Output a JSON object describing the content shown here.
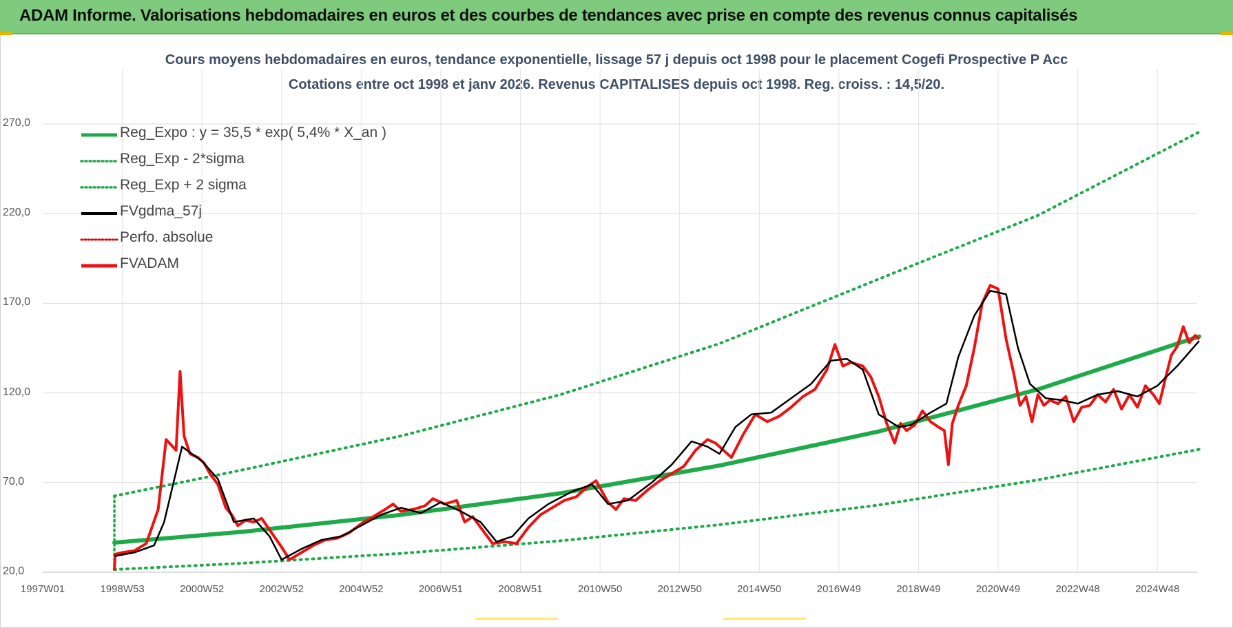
{
  "banner": {
    "title": "ADAM Informe. Valorisations hebdomadaires en euros et des courbes de tendances avec prise en compte des revenus connus capitalisés"
  },
  "chart_data": {
    "type": "line",
    "title_line1": "Cours moyens hebdomadaires en euros, tendance exponentielle, lissage 57 j depuis oct 1998 pour le placement Cogefi Prospective P Acc",
    "title_line2": "Cotations entre oct 1998 et janv 2026. Revenus CAPITALISES depuis oct 1998. Reg. croiss. : 14,5/20.",
    "ylim": [
      20,
      270
    ],
    "y_ticks": [
      "270,0",
      "220,0",
      "170,0",
      "120,0",
      "70,0",
      "20,0"
    ],
    "y_tick_values": [
      270,
      220,
      170,
      120,
      70,
      20
    ],
    "x_range": [
      1997.0,
      2026.0
    ],
    "x_ticks": [
      "1997W01",
      "1998W53",
      "2000W52",
      "2002W52",
      "2004W52",
      "2006W51",
      "2008W51",
      "2010W50",
      "2012W50",
      "2014W50",
      "2016W49",
      "2018W49",
      "2020W49",
      "2022W48",
      "2024W48"
    ],
    "x_tick_values": [
      1997.0,
      1999.0,
      2001.0,
      2003.0,
      2005.0,
      2007.0,
      2009.0,
      2011.0,
      2013.0,
      2015.0,
      2017.0,
      2019.0,
      2021.0,
      2023.0,
      2025.0
    ],
    "start_year": 1998.8,
    "end_year": 2026.05,
    "series": [
      {
        "name": "Reg_Expo : y = 35,5 * exp( 5,4% *  X_an )",
        "color": "#1faa4a",
        "style": "solid-thick",
        "x": [
          1998.8,
          2002,
          2006,
          2010,
          2014,
          2018,
          2022,
          2026.05
        ],
        "y": [
          36.5,
          42.5,
          52.0,
          64.0,
          79.5,
          98.5,
          122.0,
          151.5
        ]
      },
      {
        "name": "Reg_Exp - 2*sigma",
        "color": "#1faa4a",
        "style": "dotted",
        "x": [
          1998.8,
          2002,
          2006,
          2010,
          2014,
          2018,
          2022,
          2026.05
        ],
        "y": [
          21.5,
          25.0,
          30.5,
          37.5,
          46.5,
          57.5,
          71.5,
          88.5
        ]
      },
      {
        "name": "Reg_Exp + 2 sigma",
        "color": "#1faa4a",
        "style": "dotted",
        "x": [
          1998.8,
          2002,
          2006,
          2010,
          2014,
          2018,
          2022,
          2026.05
        ],
        "y": [
          62.5,
          77.0,
          96.0,
          119.0,
          147.5,
          183.5,
          219.0,
          265.5
        ]
      },
      {
        "name": "FVgdma_57j",
        "color": "#000000",
        "style": "solid",
        "x": [
          1998.8,
          1999.3,
          1999.8,
          2000.05,
          2000.5,
          2001.0,
          2001.4,
          2001.8,
          2002.3,
          2002.7,
          2003.0,
          2003.5,
          2004.0,
          2004.5,
          2005.0,
          2005.5,
          2006.0,
          2006.5,
          2007.0,
          2007.5,
          2008.0,
          2008.4,
          2008.8,
          2009.2,
          2009.7,
          2010.3,
          2010.8,
          2011.2,
          2011.7,
          2012.3,
          2012.8,
          2013.3,
          2013.7,
          2014.0,
          2014.4,
          2014.8,
          2015.3,
          2015.8,
          2016.3,
          2016.8,
          2017.2,
          2017.6,
          2018.0,
          2018.5,
          2018.8,
          2019.3,
          2019.7,
          2020.0,
          2020.4,
          2020.8,
          2021.2,
          2021.5,
          2021.8,
          2022.2,
          2022.6,
          2023.0,
          2023.5,
          2024.0,
          2024.5,
          2025.0,
          2025.5,
          2026.05
        ],
        "y": [
          29,
          31,
          35,
          48,
          90,
          82,
          72,
          48,
          50,
          40,
          27,
          33,
          38,
          40,
          46,
          52,
          56,
          53,
          59,
          54,
          48,
          37,
          40,
          50,
          58,
          65,
          69,
          58,
          60,
          70,
          80,
          93,
          90,
          86,
          101,
          108,
          109,
          117,
          125,
          138,
          139,
          133,
          108,
          101,
          102,
          109,
          114,
          140,
          163,
          177,
          175,
          145,
          125,
          117,
          116,
          114,
          119,
          121,
          118,
          124,
          135,
          149
        ]
      },
      {
        "name": "Perfo. absolue",
        "color": "#e00000",
        "style": "dotted",
        "x": [],
        "y": []
      },
      {
        "name": "FVADAM",
        "color": "#ee1111",
        "style": "solid-thick",
        "x": [
          1998.8,
          1998.82,
          1999.0,
          1999.3,
          1999.6,
          1999.9,
          2000.1,
          2000.35,
          2000.45,
          2000.55,
          2000.7,
          2000.9,
          2001.05,
          2001.2,
          2001.4,
          2001.6,
          2001.75,
          2001.9,
          2002.1,
          2002.3,
          2002.5,
          2002.75,
          2003.0,
          2003.2,
          2003.5,
          2003.8,
          2004.1,
          2004.4,
          2004.7,
          2005.0,
          2005.3,
          2005.6,
          2005.8,
          2006.0,
          2006.3,
          2006.6,
          2006.8,
          2007.1,
          2007.4,
          2007.6,
          2007.8,
          2008.0,
          2008.3,
          2008.6,
          2008.9,
          2009.2,
          2009.5,
          2009.8,
          2010.1,
          2010.4,
          2010.7,
          2010.9,
          2011.2,
          2011.4,
          2011.6,
          2011.9,
          2012.2,
          2012.5,
          2012.8,
          2013.1,
          2013.4,
          2013.7,
          2013.9,
          2014.1,
          2014.3,
          2014.6,
          2014.9,
          2015.2,
          2015.5,
          2015.8,
          2016.1,
          2016.4,
          2016.7,
          2016.9,
          2017.1,
          2017.3,
          2017.6,
          2017.8,
          2018.0,
          2018.2,
          2018.4,
          2018.55,
          2018.7,
          2018.9,
          2019.1,
          2019.3,
          2019.5,
          2019.65,
          2019.75,
          2019.85,
          2020.0,
          2020.2,
          2020.4,
          2020.6,
          2020.8,
          2021.0,
          2021.2,
          2021.4,
          2021.55,
          2021.7,
          2021.85,
          2022.0,
          2022.15,
          2022.3,
          2022.5,
          2022.7,
          2022.9,
          2023.1,
          2023.3,
          2023.5,
          2023.7,
          2023.9,
          2024.1,
          2024.3,
          2024.5,
          2024.7,
          2024.9,
          2025.05,
          2025.2,
          2025.35,
          2025.5,
          2025.65,
          2025.8,
          2025.95,
          2026.05
        ],
        "y": [
          21,
          30,
          31,
          32,
          36,
          55,
          94,
          88,
          132,
          96,
          86,
          84,
          81,
          75,
          69,
          56,
          52,
          46,
          49,
          48,
          50,
          42,
          34,
          27,
          31,
          35,
          38,
          39,
          42,
          47,
          51,
          55,
          58,
          54,
          55,
          57,
          61,
          58,
          60,
          48,
          51,
          45,
          36,
          37,
          36,
          45,
          52,
          56,
          60,
          62,
          68,
          71,
          59,
          55,
          61,
          60,
          66,
          71,
          75,
          79,
          88,
          94,
          92,
          88,
          84,
          97,
          108,
          104,
          107,
          112,
          118,
          122,
          133,
          147,
          135,
          137,
          135,
          129,
          118,
          103,
          92,
          103,
          99,
          102,
          110,
          104,
          101,
          99,
          80,
          103,
          113,
          124,
          145,
          170,
          180,
          178,
          150,
          130,
          113,
          118,
          104,
          119,
          113,
          116,
          114,
          118,
          104,
          112,
          113,
          119,
          115,
          122,
          111,
          119,
          112,
          124,
          119,
          114,
          128,
          141,
          146,
          157,
          148,
          152,
          150
        ]
      }
    ]
  }
}
